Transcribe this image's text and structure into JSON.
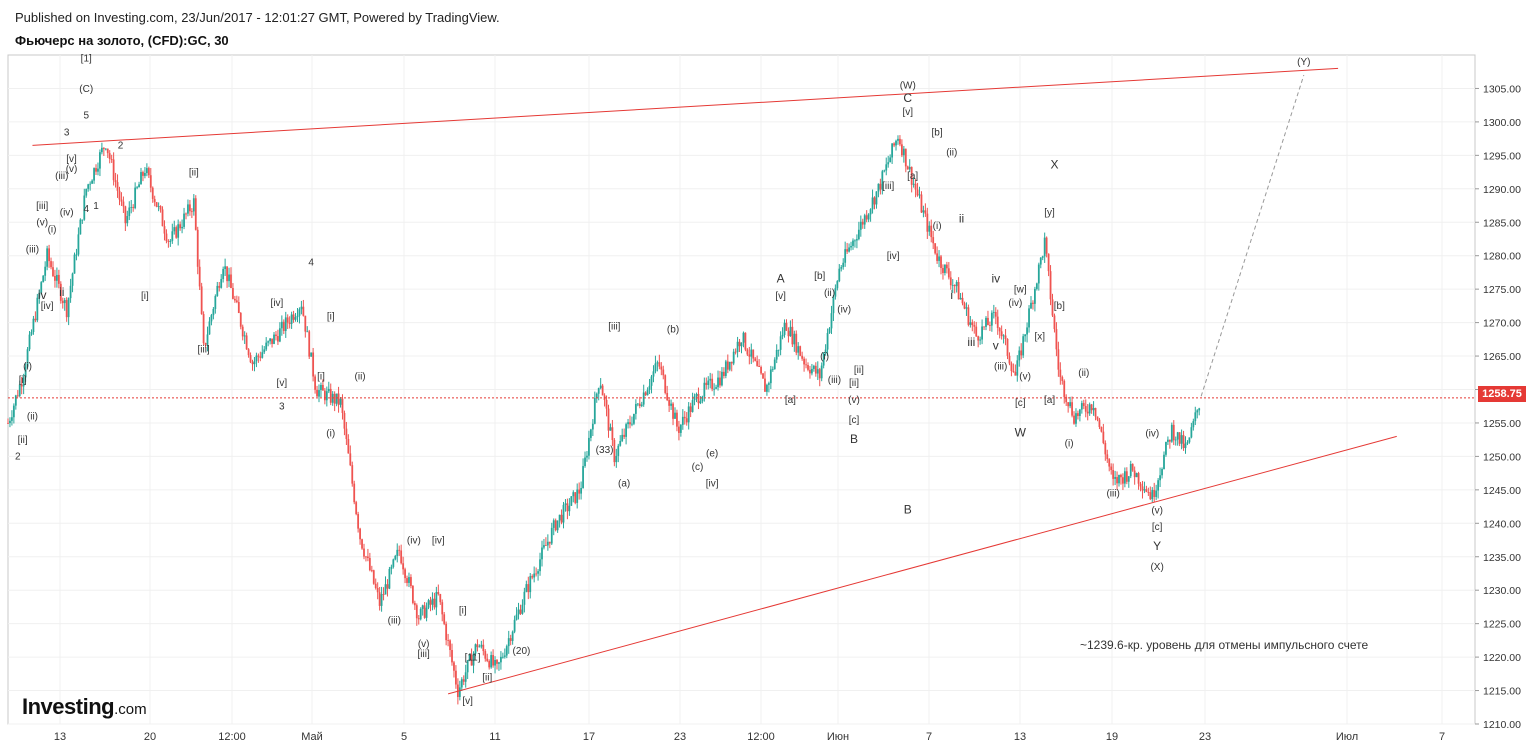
{
  "header": {
    "published": "Published on Investing.com, 23/Jun/2017 - 12:01:27 GMT, Powered by TradingView.",
    "symbol_title": "Фьючерс на золото, (CFD):GC, 30"
  },
  "logo": {
    "brand": "Investing",
    "suffix": ".com"
  },
  "current_price": "1258.75",
  "colors": {
    "up": "#26a69a",
    "down": "#ef5350",
    "trendline": "#e53935",
    "grid": "#f0f0f0"
  },
  "chart_data": {
    "type": "candlestick",
    "title": "Фьючерс на золото, (CFD):GC, 30",
    "ylim": [
      1210,
      1310
    ],
    "y_ticks": [
      "1210.00",
      "1215.00",
      "1220.00",
      "1225.00",
      "1230.00",
      "1235.00",
      "1240.00",
      "1245.00",
      "1250.00",
      "1255.00",
      "1260.00",
      "1265.00",
      "1270.00",
      "1275.00",
      "1280.00",
      "1285.00",
      "1290.00",
      "1295.00",
      "1300.00",
      "1305.00"
    ],
    "x_ticks": [
      "13",
      "20",
      "12:00",
      "Май",
      "5",
      "11",
      "17",
      "23",
      "12:00",
      "Июн",
      "7",
      "13",
      "19",
      "23",
      "Июл",
      "7"
    ],
    "price_path": [
      {
        "t": 0,
        "p": 1255
      },
      {
        "t": 3,
        "p": 1262
      },
      {
        "t": 8,
        "p": 1280
      },
      {
        "t": 12,
        "p": 1272
      },
      {
        "t": 16,
        "p": 1290
      },
      {
        "t": 20,
        "p": 1297
      },
      {
        "t": 24,
        "p": 1285
      },
      {
        "t": 28,
        "p": 1293
      },
      {
        "t": 33,
        "p": 1282
      },
      {
        "t": 38,
        "p": 1288
      },
      {
        "t": 40,
        "p": 1266
      },
      {
        "t": 44,
        "p": 1279
      },
      {
        "t": 50,
        "p": 1264
      },
      {
        "t": 56,
        "p": 1269
      },
      {
        "t": 60,
        "p": 1273
      },
      {
        "t": 63,
        "p": 1260
      },
      {
        "t": 68,
        "p": 1258
      },
      {
        "t": 72,
        "p": 1238
      },
      {
        "t": 76,
        "p": 1228
      },
      {
        "t": 80,
        "p": 1236
      },
      {
        "t": 84,
        "p": 1226
      },
      {
        "t": 88,
        "p": 1229
      },
      {
        "t": 92,
        "p": 1215
      },
      {
        "t": 96,
        "p": 1222
      },
      {
        "t": 100,
        "p": 1218
      },
      {
        "t": 106,
        "p": 1230
      },
      {
        "t": 112,
        "p": 1240
      },
      {
        "t": 117,
        "p": 1245
      },
      {
        "t": 121,
        "p": 1262
      },
      {
        "t": 124,
        "p": 1250
      },
      {
        "t": 129,
        "p": 1258
      },
      {
        "t": 133,
        "p": 1264
      },
      {
        "t": 137,
        "p": 1254
      },
      {
        "t": 141,
        "p": 1259
      },
      {
        "t": 146,
        "p": 1262
      },
      {
        "t": 150,
        "p": 1268
      },
      {
        "t": 155,
        "p": 1260
      },
      {
        "t": 159,
        "p": 1270
      },
      {
        "t": 163,
        "p": 1264
      },
      {
        "t": 166,
        "p": 1262
      },
      {
        "t": 170,
        "p": 1278
      },
      {
        "t": 174,
        "p": 1284
      },
      {
        "t": 178,
        "p": 1290
      },
      {
        "t": 182,
        "p": 1298
      },
      {
        "t": 186,
        "p": 1289
      },
      {
        "t": 190,
        "p": 1280
      },
      {
        "t": 194,
        "p": 1275
      },
      {
        "t": 198,
        "p": 1268
      },
      {
        "t": 202,
        "p": 1271
      },
      {
        "t": 206,
        "p": 1262
      },
      {
        "t": 209,
        "p": 1272
      },
      {
        "t": 212,
        "p": 1282
      },
      {
        "t": 215,
        "p": 1262
      },
      {
        "t": 218,
        "p": 1256
      },
      {
        "t": 222,
        "p": 1258
      },
      {
        "t": 226,
        "p": 1246
      },
      {
        "t": 230,
        "p": 1248
      },
      {
        "t": 234,
        "p": 1244
      },
      {
        "t": 238,
        "p": 1254
      },
      {
        "t": 241,
        "p": 1251
      },
      {
        "t": 244,
        "p": 1259
      }
    ],
    "trendlines": [
      {
        "name": "upper-channel",
        "from": {
          "t": 5,
          "p": 1296.5
        },
        "to": {
          "t": 272,
          "p": 1308
        }
      },
      {
        "name": "lower-channel",
        "from": {
          "t": 90,
          "p": 1214.5
        },
        "to": {
          "t": 284,
          "p": 1253
        }
      },
      {
        "name": "projection",
        "dashed": true,
        "from": {
          "t": 244,
          "p": 1259
        },
        "to": {
          "t": 265,
          "p": 1307
        }
      }
    ],
    "horizontal_line": {
      "price": 1258.75
    },
    "annotations": [
      {
        "text": "[1]",
        "t": 16,
        "p": 1309
      },
      {
        "text": "(C)",
        "t": 16,
        "p": 1304.5
      },
      {
        "text": "5",
        "t": 16,
        "p": 1300.5
      },
      {
        "text": "3",
        "t": 12,
        "p": 1298
      },
      {
        "text": "2",
        "t": 23,
        "p": 1296
      },
      {
        "text": "[v]",
        "t": 13,
        "p": 1294
      },
      {
        "text": "(v)",
        "t": 13,
        "p": 1292.5
      },
      {
        "text": "(iii)",
        "t": 11,
        "p": 1291.5
      },
      {
        "text": "[iii]",
        "t": 7,
        "p": 1287
      },
      {
        "text": "1",
        "t": 18,
        "p": 1287
      },
      {
        "text": "4",
        "t": 16,
        "p": 1286.5
      },
      {
        "text": "(iv)",
        "t": 12,
        "p": 1286
      },
      {
        "text": "(v)",
        "t": 7,
        "p": 1284.5
      },
      {
        "text": "(i)",
        "t": 9,
        "p": 1283.5
      },
      {
        "text": "(iii)",
        "t": 5,
        "p": 1280.5
      },
      {
        "text": "iv",
        "t": 7,
        "p": 1273.5
      },
      {
        "text": "ii",
        "t": 11,
        "p": 1274
      },
      {
        "text": "[iv]",
        "t": 8,
        "p": 1272
      },
      {
        "text": "[ii]",
        "t": 38,
        "p": 1292
      },
      {
        "text": "[i]",
        "t": 28,
        "p": 1273.5
      },
      {
        "text": "(i)",
        "t": 4,
        "p": 1263
      },
      {
        "text": "[i]",
        "t": 3,
        "p": 1261
      },
      {
        "text": "(ii)",
        "t": 5,
        "p": 1255.5
      },
      {
        "text": "[ii]",
        "t": 3,
        "p": 1252
      },
      {
        "text": "2",
        "t": 2,
        "p": 1249.5
      },
      {
        "text": "[iii]",
        "t": 40,
        "p": 1265.5
      },
      {
        "text": "[iv]",
        "t": 55,
        "p": 1272.5
      },
      {
        "text": "4",
        "t": 62,
        "p": 1278.5
      },
      {
        "text": "[i]",
        "t": 66,
        "p": 1270.5
      },
      {
        "text": "[v]",
        "t": 56,
        "p": 1260.5
      },
      {
        "text": "[i]",
        "t": 64,
        "p": 1261.5
      },
      {
        "text": "(ii)",
        "t": 72,
        "p": 1261.5
      },
      {
        "text": "3",
        "t": 56,
        "p": 1257
      },
      {
        "text": "(i)",
        "t": 66,
        "p": 1253
      },
      {
        "text": "(iv)",
        "t": 83,
        "p": 1237
      },
      {
        "text": "[iv]",
        "t": 88,
        "p": 1237
      },
      {
        "text": "(iii)",
        "t": 79,
        "p": 1225
      },
      {
        "text": "(v)",
        "t": 85,
        "p": 1221.5
      },
      {
        "text": "[iii]",
        "t": 85,
        "p": 1220
      },
      {
        "text": "[i]",
        "t": 93,
        "p": 1226.5
      },
      {
        "text": "[11]",
        "t": 95,
        "p": 1219.5
      },
      {
        "text": "(20)",
        "t": 105,
        "p": 1220.5
      },
      {
        "text": "[ii]",
        "t": 98,
        "p": 1216.5
      },
      {
        "text": "[v]",
        "t": 94,
        "p": 1213
      },
      {
        "text": "[iii]",
        "t": 124,
        "p": 1269
      },
      {
        "text": "(33)",
        "t": 122,
        "p": 1250.5
      },
      {
        "text": "(a)",
        "t": 126,
        "p": 1245.5
      },
      {
        "text": "(b)",
        "t": 136,
        "p": 1268.5
      },
      {
        "text": "(c)",
        "t": 141,
        "p": 1248
      },
      {
        "text": "(e)",
        "t": 144,
        "p": 1250
      },
      {
        "text": "[iv]",
        "t": 144,
        "p": 1245.5
      },
      {
        "text": "A",
        "t": 158,
        "p": 1276
      },
      {
        "text": "[v]",
        "t": 158,
        "p": 1273.5
      },
      {
        "text": "[a]",
        "t": 160,
        "p": 1258
      },
      {
        "text": "[b]",
        "t": 166,
        "p": 1276.5
      },
      {
        "text": "(ii)",
        "t": 168,
        "p": 1274
      },
      {
        "text": "(iv)",
        "t": 171,
        "p": 1271.5
      },
      {
        "text": "(i)",
        "t": 167,
        "p": 1264.5
      },
      {
        "text": "(iii)",
        "t": 169,
        "p": 1261
      },
      {
        "text": "[ii]",
        "t": 174,
        "p": 1262.5
      },
      {
        "text": "[ii]",
        "t": 173,
        "p": 1260.5
      },
      {
        "text": "(v)",
        "t": 173,
        "p": 1258
      },
      {
        "text": "[c]",
        "t": 173,
        "p": 1255
      },
      {
        "text": "B",
        "t": 173,
        "p": 1252
      },
      {
        "text": "(W)",
        "t": 184,
        "p": 1305
      },
      {
        "text": "C",
        "t": 184,
        "p": 1303
      },
      {
        "text": "[v]",
        "t": 184,
        "p": 1301
      },
      {
        "text": "[b]",
        "t": 190,
        "p": 1298
      },
      {
        "text": "(ii)",
        "t": 193,
        "p": 1295
      },
      {
        "text": "[iii]",
        "t": 180,
        "p": 1290
      },
      {
        "text": "[a]",
        "t": 185,
        "p": 1291.5
      },
      {
        "text": "[iv]",
        "t": 181,
        "p": 1279.5
      },
      {
        "text": "(i)",
        "t": 190,
        "p": 1284
      },
      {
        "text": "ii",
        "t": 195,
        "p": 1285
      },
      {
        "text": "i",
        "t": 193,
        "p": 1273.5
      },
      {
        "text": "iv",
        "t": 202,
        "p": 1276
      },
      {
        "text": "iii",
        "t": 197,
        "p": 1266.5
      },
      {
        "text": "v",
        "t": 202,
        "p": 1266
      },
      {
        "text": "(iii)",
        "t": 203,
        "p": 1263
      },
      {
        "text": "[w]",
        "t": 207,
        "p": 1274.5
      },
      {
        "text": "(iv)",
        "t": 206,
        "p": 1272.5
      },
      {
        "text": "[x]",
        "t": 211,
        "p": 1267.5
      },
      {
        "text": "[b]",
        "t": 215,
        "p": 1272
      },
      {
        "text": "(v)",
        "t": 208,
        "p": 1261.5
      },
      {
        "text": "[c]",
        "t": 207,
        "p": 1257.5
      },
      {
        "text": "[a]",
        "t": 213,
        "p": 1258
      },
      {
        "text": "W",
        "t": 207,
        "p": 1253
      },
      {
        "text": "[y]",
        "t": 213,
        "p": 1286
      },
      {
        "text": "X",
        "t": 214,
        "p": 1293
      },
      {
        "text": "(ii)",
        "t": 220,
        "p": 1262
      },
      {
        "text": "(i)",
        "t": 217,
        "p": 1251.5
      },
      {
        "text": "(iv)",
        "t": 234,
        "p": 1253
      },
      {
        "text": "(iii)",
        "t": 226,
        "p": 1244
      },
      {
        "text": "(v)",
        "t": 235,
        "p": 1241.5
      },
      {
        "text": "[c]",
        "t": 235,
        "p": 1239
      },
      {
        "text": "Y",
        "t": 235,
        "p": 1236
      },
      {
        "text": "(X)",
        "t": 235,
        "p": 1233
      },
      {
        "text": "B",
        "t": 184,
        "p": 1241.5
      },
      {
        "text": "(Y)",
        "t": 265,
        "p": 1308.5
      }
    ],
    "note": "~1239.6-кр. уровень для отмены импульсного счете"
  }
}
